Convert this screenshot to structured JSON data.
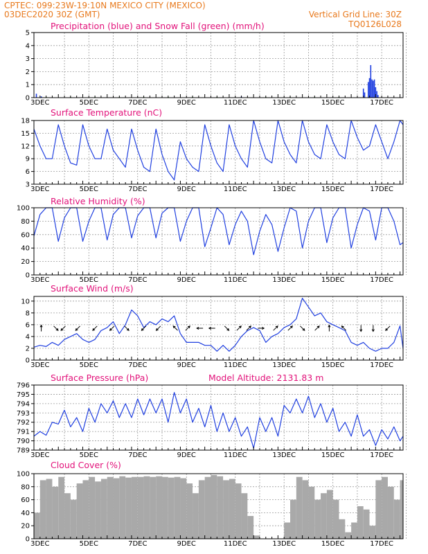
{
  "header": {
    "line1_left": "CPTEC:   099:23W-19:10N   MEXICO CITY (MEXICO)",
    "line2_left": "03DEC2020 30Z (GMT)",
    "line2_right": "Vertical Grid Line: 30Z",
    "line3_right": "TQ0126L028"
  },
  "colors": {
    "header": "#e8791c",
    "panel_title": "#e2127a",
    "line": "#1f3fe0",
    "precip": "#1f3fe0",
    "snow": "#1e9e1e",
    "cloud": "#a9a9a9",
    "grid": "#9a9a9a"
  },
  "chart_data": [
    {
      "id": "precip",
      "type": "bar",
      "title": "Precipitation (blue) and Snow Fall (green) (mm/h)",
      "x_tick_labels": [
        "3DEC",
        "5DEC",
        "7DEC",
        "9DEC",
        "11DEC",
        "13DEC",
        "15DEC",
        "17DEC"
      ],
      "x_range_days": [
        3,
        18.125
      ],
      "ylim": [
        0,
        5
      ],
      "y_ticks": [
        0,
        1,
        2,
        3,
        4,
        5
      ],
      "grid": true,
      "series": [
        {
          "name": "Precipitation",
          "color": "#1f3fe0",
          "points": [
            [
              3.1,
              0.3
            ],
            [
              3.3,
              0.1
            ],
            [
              11.5,
              0.08
            ],
            [
              16.5,
              0.7
            ],
            [
              16.55,
              0.4
            ],
            [
              16.7,
              1.2
            ],
            [
              16.75,
              1.5
            ],
            [
              16.8,
              2.5
            ],
            [
              16.85,
              1.4
            ],
            [
              16.9,
              1.3
            ],
            [
              16.95,
              1.4
            ],
            [
              17.0,
              0.8
            ],
            [
              17.05,
              0.5
            ],
            [
              17.1,
              0.2
            ]
          ]
        },
        {
          "name": "Snow Fall",
          "color": "#1e9e1e",
          "points": [
            [
              3.5,
              0.05
            ],
            [
              4.5,
              0.05
            ],
            [
              5.5,
              0.05
            ],
            [
              6.5,
              0.05
            ],
            [
              7.5,
              0.05
            ],
            [
              8.5,
              0.05
            ],
            [
              9.5,
              0.05
            ],
            [
              10.5,
              0.05
            ],
            [
              12.5,
              0.05
            ],
            [
              13.5,
              0.05
            ],
            [
              14.5,
              0.05
            ],
            [
              15.5,
              0.05
            ]
          ]
        }
      ]
    },
    {
      "id": "temp",
      "type": "line",
      "title": "Surface Temperature (nC)",
      "x_tick_labels": [
        "3DEC",
        "5DEC",
        "7DEC",
        "9DEC",
        "11DEC",
        "13DEC",
        "15DEC",
        "17DEC"
      ],
      "ylim": [
        3,
        18
      ],
      "y_ticks": [
        3,
        6,
        9,
        12,
        15,
        18
      ],
      "grid": true,
      "x": [
        3.0,
        3.25,
        3.5,
        3.75,
        4.0,
        4.25,
        4.5,
        4.75,
        5.0,
        5.25,
        5.5,
        5.75,
        6.0,
        6.25,
        6.5,
        6.75,
        7.0,
        7.25,
        7.5,
        7.75,
        8.0,
        8.25,
        8.5,
        8.75,
        9.0,
        9.25,
        9.5,
        9.75,
        10.0,
        10.25,
        10.5,
        10.75,
        11.0,
        11.25,
        11.5,
        11.75,
        12.0,
        12.25,
        12.5,
        12.75,
        13.0,
        13.25,
        13.5,
        13.75,
        14.0,
        14.25,
        14.5,
        14.75,
        15.0,
        15.25,
        15.5,
        15.75,
        16.0,
        16.25,
        16.5,
        16.75,
        17.0,
        17.25,
        17.5,
        17.75,
        18.0,
        18.125
      ],
      "y": [
        16,
        12,
        9,
        9,
        17,
        12,
        8,
        7.5,
        17,
        12,
        9,
        9,
        16,
        11,
        9,
        7,
        16,
        11,
        7,
        6,
        16,
        10,
        6,
        4,
        13,
        9,
        7,
        6,
        17,
        12,
        8,
        6,
        17,
        12,
        9,
        7,
        18,
        13,
        9,
        8,
        18,
        13,
        10,
        8,
        18,
        13,
        10,
        9,
        17,
        13,
        10,
        9,
        18,
        14,
        11,
        12,
        17,
        13,
        9,
        13,
        18,
        17
      ]
    },
    {
      "id": "rh",
      "type": "line",
      "title": "Relative Humidity (%)",
      "x_tick_labels": [
        "3DEC",
        "5DEC",
        "7DEC",
        "9DEC",
        "11DEC",
        "13DEC",
        "15DEC",
        "17DEC"
      ],
      "ylim": [
        0,
        100
      ],
      "y_ticks": [
        0,
        20,
        40,
        60,
        80,
        100
      ],
      "grid": true,
      "x": [
        3.0,
        3.25,
        3.5,
        3.75,
        4.0,
        4.25,
        4.5,
        4.75,
        5.0,
        5.25,
        5.5,
        5.75,
        6.0,
        6.25,
        6.5,
        6.75,
        7.0,
        7.25,
        7.5,
        7.75,
        8.0,
        8.25,
        8.5,
        8.75,
        9.0,
        9.25,
        9.5,
        9.75,
        10.0,
        10.25,
        10.5,
        10.75,
        11.0,
        11.25,
        11.5,
        11.75,
        12.0,
        12.25,
        12.5,
        12.75,
        13.0,
        13.25,
        13.5,
        13.75,
        14.0,
        14.25,
        14.5,
        14.75,
        15.0,
        15.25,
        15.5,
        15.75,
        16.0,
        16.25,
        16.5,
        16.75,
        17.0,
        17.25,
        17.5,
        17.75,
        18.0,
        18.125
      ],
      "y": [
        58,
        90,
        100,
        100,
        50,
        85,
        100,
        100,
        50,
        80,
        100,
        100,
        52,
        90,
        100,
        100,
        55,
        88,
        100,
        100,
        55,
        92,
        100,
        100,
        50,
        80,
        100,
        100,
        42,
        70,
        100,
        90,
        45,
        75,
        95,
        80,
        30,
        65,
        90,
        75,
        35,
        70,
        100,
        95,
        40,
        80,
        100,
        100,
        48,
        85,
        100,
        100,
        40,
        75,
        100,
        95,
        52,
        100,
        100,
        80,
        45,
        48
      ]
    },
    {
      "id": "wind",
      "type": "line",
      "title": "Surface Wind (m/s)",
      "x_tick_labels": [
        "3DEC",
        "5DEC",
        "7DEC",
        "9DEC",
        "11DEC",
        "13DEC",
        "15DEC",
        "17DEC"
      ],
      "ylim": [
        0,
        10.8
      ],
      "y_ticks": [
        0,
        2,
        4,
        6,
        8,
        10
      ],
      "grid": true,
      "x": [
        3.0,
        3.25,
        3.5,
        3.75,
        4.0,
        4.25,
        4.5,
        4.75,
        5.0,
        5.25,
        5.5,
        5.75,
        6.0,
        6.25,
        6.5,
        6.75,
        7.0,
        7.25,
        7.5,
        7.75,
        8.0,
        8.25,
        8.5,
        8.75,
        9.0,
        9.25,
        9.5,
        9.75,
        10.0,
        10.25,
        10.5,
        10.75,
        11.0,
        11.25,
        11.5,
        11.75,
        12.0,
        12.25,
        12.5,
        12.75,
        13.0,
        13.25,
        13.5,
        13.75,
        14.0,
        14.25,
        14.5,
        14.75,
        15.0,
        15.25,
        15.5,
        15.75,
        16.0,
        16.25,
        16.5,
        16.75,
        17.0,
        17.25,
        17.5,
        17.75,
        18.0,
        18.125
      ],
      "y": [
        2.2,
        2.5,
        2.3,
        3.0,
        2.5,
        3.5,
        4.0,
        4.5,
        3.5,
        3.0,
        3.5,
        5.0,
        5.5,
        6.5,
        4.5,
        6.0,
        8.5,
        7.5,
        5.5,
        6.5,
        6.0,
        7.0,
        6.5,
        7.5,
        4.5,
        3.0,
        3.0,
        3.0,
        2.5,
        2.5,
        1.5,
        2.5,
        1.5,
        2.5,
        4.0,
        5.0,
        5.5,
        5.0,
        3.0,
        4.0,
        4.5,
        5.5,
        6.0,
        7.0,
        10.5,
        9.0,
        7.5,
        8.0,
        6.5,
        6.0,
        5.5,
        5.0,
        3.0,
        2.5,
        3.0,
        2.0,
        1.5,
        2.0,
        2.0,
        3.0,
        5.8,
        2.0
      ],
      "arrows": [
        [
          3.3,
          0,
          1
        ],
        [
          3.9,
          1,
          -1
        ],
        [
          4.2,
          -1,
          -1
        ],
        [
          4.8,
          -1,
          -1
        ],
        [
          5.5,
          -1,
          -1
        ],
        [
          6.2,
          -1,
          -1
        ],
        [
          6.8,
          1,
          -1
        ],
        [
          7.5,
          -1,
          -1
        ],
        [
          8.1,
          -1,
          -1
        ],
        [
          8.8,
          -1,
          1
        ],
        [
          9.3,
          1,
          1
        ],
        [
          9.8,
          -1,
          0
        ],
        [
          10.3,
          -1,
          0
        ],
        [
          10.9,
          1,
          -1
        ],
        [
          11.4,
          1,
          1
        ],
        [
          11.8,
          1,
          1
        ],
        [
          12.3,
          1,
          0
        ],
        [
          12.9,
          1,
          1
        ],
        [
          13.5,
          1,
          1
        ],
        [
          14.0,
          1,
          -1
        ],
        [
          14.6,
          1,
          1
        ],
        [
          15.1,
          0,
          1
        ],
        [
          15.7,
          -1,
          1
        ],
        [
          16.4,
          0,
          -1
        ],
        [
          16.9,
          0,
          -1
        ],
        [
          17.5,
          -1,
          -1
        ]
      ]
    },
    {
      "id": "pres",
      "type": "line",
      "title": "Surface Pressure (hPa)",
      "annotation": "Model Altitude: 2131.83 m",
      "x_tick_labels": [
        "3DEC",
        "5DEC",
        "7DEC",
        "9DEC",
        "11DEC",
        "13DEC",
        "15DEC",
        "17DEC"
      ],
      "ylim": [
        789,
        796
      ],
      "y_ticks": [
        789,
        790,
        791,
        792,
        793,
        794,
        795,
        796
      ],
      "grid": true,
      "x": [
        3.0,
        3.25,
        3.5,
        3.75,
        4.0,
        4.25,
        4.5,
        4.75,
        5.0,
        5.25,
        5.5,
        5.75,
        6.0,
        6.25,
        6.5,
        6.75,
        7.0,
        7.25,
        7.5,
        7.75,
        8.0,
        8.25,
        8.5,
        8.75,
        9.0,
        9.25,
        9.5,
        9.75,
        10.0,
        10.25,
        10.5,
        10.75,
        11.0,
        11.25,
        11.5,
        11.75,
        12.0,
        12.25,
        12.5,
        12.75,
        13.0,
        13.25,
        13.5,
        13.75,
        14.0,
        14.25,
        14.5,
        14.75,
        15.0,
        15.25,
        15.5,
        15.75,
        16.0,
        16.25,
        16.5,
        16.75,
        17.0,
        17.25,
        17.5,
        17.75,
        18.0,
        18.125
      ],
      "y": [
        790.5,
        791.0,
        790.6,
        792.0,
        791.8,
        793.3,
        791.5,
        792.5,
        791.0,
        793.5,
        792.0,
        794.0,
        793.0,
        794.3,
        792.5,
        794.0,
        792.5,
        794.5,
        792.8,
        794.5,
        793.0,
        794.5,
        792.0,
        795.2,
        793.0,
        794.5,
        792.0,
        793.5,
        791.5,
        793.8,
        791.0,
        793.0,
        791.0,
        792.5,
        790.5,
        791.5,
        789.2,
        792.5,
        791.0,
        792.5,
        790.5,
        793.8,
        793.0,
        794.5,
        793.0,
        794.8,
        792.5,
        794.0,
        792.0,
        793.5,
        791.0,
        792.0,
        790.5,
        792.8,
        790.5,
        791.2,
        789.5,
        791.2,
        790.2,
        791.5,
        790.0,
        790.5
      ]
    },
    {
      "id": "cloud",
      "type": "area",
      "title": "Cloud Cover (%)",
      "x_tick_labels": [
        "3DEC",
        "5DEC",
        "7DEC",
        "9DEC",
        "11DEC",
        "13DEC",
        "15DEC",
        "17DEC"
      ],
      "ylim": [
        0,
        100
      ],
      "y_ticks": [
        0,
        20,
        40,
        60,
        80,
        100
      ],
      "grid": true,
      "x": [
        3.0,
        3.25,
        3.5,
        3.75,
        4.0,
        4.25,
        4.5,
        4.75,
        5.0,
        5.25,
        5.5,
        5.75,
        6.0,
        6.25,
        6.5,
        6.75,
        7.0,
        7.25,
        7.5,
        7.75,
        8.0,
        8.25,
        8.5,
        8.75,
        9.0,
        9.25,
        9.5,
        9.75,
        10.0,
        10.25,
        10.5,
        10.75,
        11.0,
        11.25,
        11.5,
        11.75,
        12.0,
        12.25,
        12.5,
        12.75,
        13.0,
        13.25,
        13.5,
        13.75,
        14.0,
        14.25,
        14.5,
        14.75,
        15.0,
        15.25,
        15.5,
        15.75,
        16.0,
        16.25,
        16.5,
        16.75,
        17.0,
        17.25,
        17.5,
        17.75,
        18.0,
        18.125
      ],
      "y": [
        40,
        90,
        92,
        80,
        95,
        70,
        60,
        85,
        90,
        95,
        88,
        92,
        95,
        93,
        96,
        94,
        95,
        95,
        96,
        95,
        96,
        95,
        94,
        95,
        93,
        85,
        70,
        90,
        95,
        98,
        96,
        90,
        92,
        85,
        70,
        35,
        5,
        0,
        0,
        0,
        0,
        25,
        60,
        95,
        90,
        80,
        60,
        70,
        75,
        60,
        30,
        10,
        25,
        50,
        45,
        20,
        90,
        95,
        80,
        60,
        90,
        85
      ]
    }
  ]
}
